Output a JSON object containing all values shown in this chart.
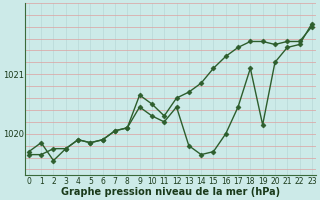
{
  "xlabel": "Graphe pression niveau de la mer (hPa)",
  "background_color": "#cceae8",
  "line_color": "#2d5e2d",
  "grid_color_h": "#dda0a0",
  "grid_color_v": "#b8d8d8",
  "yticks": [
    1020,
    1021
  ],
  "ylim": [
    1019.3,
    1022.2
  ],
  "xlim": [
    -0.3,
    23.3
  ],
  "series1": [
    1019.7,
    1019.85,
    1019.55,
    1019.75,
    1019.9,
    1019.85,
    1019.9,
    1020.05,
    1020.1,
    1020.45,
    1020.3,
    1020.2,
    1020.45,
    1019.8,
    1019.65,
    1019.7,
    1020.0,
    1020.45,
    1021.1,
    1020.15,
    1021.2,
    1021.45,
    1021.5,
    1021.85
  ],
  "series2": [
    1019.65,
    1019.65,
    1019.75,
    1019.75,
    1019.9,
    1019.85,
    1019.9,
    1020.05,
    1020.1,
    1020.65,
    1020.5,
    1020.3,
    1020.6,
    1020.7,
    1020.85,
    1021.1,
    1021.3,
    1021.45,
    1021.55,
    1021.55,
    1021.5,
    1021.55,
    1021.55,
    1021.8
  ],
  "marker": "D",
  "markersize": 2.5,
  "linewidth": 1.0,
  "tick_fontsize": 6.0,
  "label_fontsize": 7.0
}
